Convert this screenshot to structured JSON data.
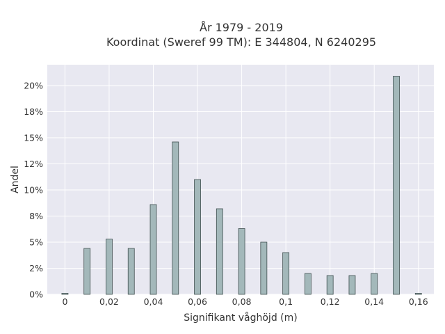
{
  "chart_data": {
    "type": "bar",
    "title_line1": "År 1979 - 2019",
    "title_line2": "Koordinat (Sweref 99 TM): E 344804, N 6240295",
    "xlabel": "Signifikant våghöjd (m)",
    "ylabel": "Andel",
    "x": [
      0,
      0.01,
      0.02,
      0.03,
      0.04,
      0.05,
      0.06,
      0.07,
      0.08,
      0.09,
      0.1,
      0.11,
      0.12,
      0.13,
      0.14,
      0.15,
      0.16
    ],
    "values": [
      0.1,
      4.4,
      5.3,
      4.4,
      8.6,
      14.6,
      11.0,
      8.2,
      6.3,
      5.0,
      4.0,
      2.0,
      1.8,
      1.8,
      2.0,
      20.9,
      0.1
    ],
    "xlim": [
      -0.008,
      0.167
    ],
    "ylim": [
      0,
      22
    ],
    "x_ticks": [
      {
        "value": 0,
        "label": "0"
      },
      {
        "value": 0.02,
        "label": "0,02"
      },
      {
        "value": 0.04,
        "label": "0,04"
      },
      {
        "value": 0.06,
        "label": "0,06"
      },
      {
        "value": 0.08,
        "label": "0,08"
      },
      {
        "value": 0.1,
        "label": "0,1"
      },
      {
        "value": 0.12,
        "label": "0,12"
      },
      {
        "value": 0.14,
        "label": "0,14"
      },
      {
        "value": 0.16,
        "label": "0,16"
      }
    ],
    "y_ticks": [
      {
        "value": 0,
        "label": "0%"
      },
      {
        "value": 2.5,
        "label": "2%"
      },
      {
        "value": 5,
        "label": "5%"
      },
      {
        "value": 7.5,
        "label": "8%"
      },
      {
        "value": 10,
        "label": "10%"
      },
      {
        "value": 12.5,
        "label": "12%"
      },
      {
        "value": 15,
        "label": "15%"
      },
      {
        "value": 17.5,
        "label": "18%"
      },
      {
        "value": 20,
        "label": "20%"
      }
    ],
    "grid": true,
    "colors": {
      "bar_fill": "#a3b8ba",
      "bar_stroke": "#3f4f4f",
      "plot_bg": "#e8e8f1",
      "grid": "#ffffff"
    }
  }
}
